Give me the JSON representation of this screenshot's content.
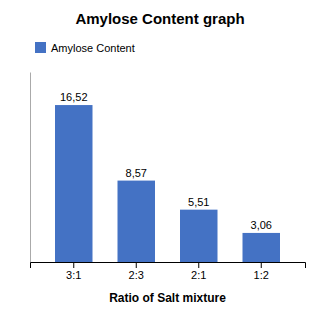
{
  "chart_data": {
    "type": "bar",
    "title": "Amylose Content graph",
    "xlabel": "Ratio of Salt mixture",
    "categories": [
      "3:1",
      "2:3",
      "2:1",
      "1:2"
    ],
    "series": [
      {
        "name": "Amylose Content",
        "color": "#4472C4",
        "values": [
          16.52,
          8.57,
          5.51,
          3.06
        ],
        "value_labels": [
          "16,52",
          "8,57",
          "5,51",
          "3,06"
        ]
      }
    ],
    "ylim": [
      0,
      20
    ],
    "data_labels": true,
    "legend": "upper left",
    "tick_labels": "x"
  }
}
